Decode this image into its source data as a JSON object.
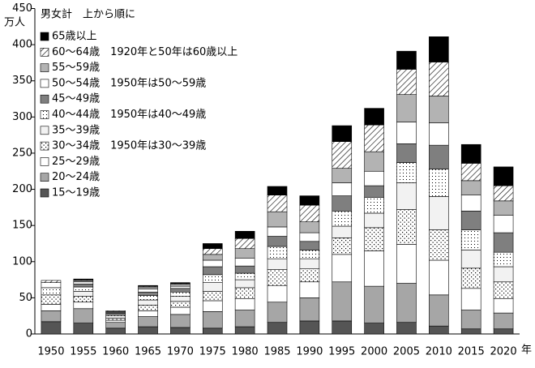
{
  "chart_data": {
    "type": "stacked-bar",
    "title": "男女計　上から順に",
    "y_unit": "万人",
    "x_unit": "年",
    "categories": [
      "1950",
      "1955",
      "1960",
      "1965",
      "1970",
      "1975",
      "1980",
      "1985",
      "1990",
      "1995",
      "2000",
      "2005",
      "2010",
      "2015",
      "2020"
    ],
    "ylim": [
      0,
      450
    ],
    "yticks": [
      0,
      50,
      100,
      150,
      200,
      250,
      300,
      350,
      400,
      450
    ],
    "series": [
      {
        "name": "15～19歳",
        "color": "#555555",
        "pattern": "solid",
        "values": [
          17,
          15,
          8,
          10,
          9,
          8,
          10,
          16,
          18,
          18,
          15,
          16,
          11,
          7,
          7
        ]
      },
      {
        "name": "20～24歳",
        "color": "#a6a6a6",
        "pattern": "solid",
        "values": [
          15,
          20,
          8,
          14,
          18,
          23,
          23,
          28,
          32,
          54,
          51,
          54,
          43,
          26,
          22
        ]
      },
      {
        "name": "25～29歳",
        "color": "#ffffff",
        "pattern": "solid",
        "values": [
          9,
          9,
          3,
          8,
          10,
          15,
          16,
          23,
          22,
          38,
          49,
          54,
          48,
          30,
          20
        ]
      },
      {
        "name": "30～34歳　1950年は30～39歳",
        "color": "#ffffff",
        "pattern": "cross",
        "values": [
          13,
          8,
          3,
          8,
          8,
          13,
          15,
          22,
          18,
          23,
          32,
          48,
          42,
          28,
          23
        ]
      },
      {
        "name": "35～39歳",
        "color": "#f2f2f2",
        "pattern": "solid",
        "values": [
          null,
          7,
          3,
          7,
          7,
          12,
          11,
          15,
          14,
          16,
          20,
          37,
          46,
          25,
          21
        ]
      },
      {
        "name": "40～44歳　1950年は40～49歳",
        "color": "#ffffff",
        "pattern": "dots",
        "values": [
          10,
          6,
          2,
          6,
          6,
          11,
          9,
          17,
          12,
          21,
          22,
          28,
          38,
          28,
          20
        ]
      },
      {
        "name": "45～49歳",
        "color": "#7f7f7f",
        "pattern": "solid",
        "values": [
          null,
          4,
          2,
          5,
          5,
          11,
          10,
          14,
          12,
          21,
          16,
          26,
          33,
          26,
          27
        ]
      },
      {
        "name": "50～54歳　1950年は50～59歳",
        "color": "#ffffff",
        "pattern": "solid",
        "values": [
          7,
          3,
          1,
          4,
          3,
          9,
          11,
          13,
          12,
          18,
          20,
          30,
          31,
          22,
          24
        ]
      },
      {
        "name": "55～59歳",
        "color": "#b3b3b3",
        "pattern": "solid",
        "values": [
          null,
          2,
          1,
          3,
          3,
          8,
          13,
          21,
          15,
          20,
          27,
          38,
          37,
          20,
          20
        ]
      },
      {
        "name": "60～64歳　1920年と50年は60歳以上",
        "color": "#ffffff",
        "pattern": "hatch",
        "values": [
          3,
          1,
          1,
          1,
          1,
          8,
          14,
          23,
          23,
          37,
          37,
          35,
          47,
          24,
          21
        ]
      },
      {
        "name": "65歳以上",
        "color": "#000000",
        "pattern": "solid",
        "values": [
          null,
          1,
          0,
          1,
          1,
          7,
          10,
          12,
          13,
          22,
          23,
          25,
          35,
          26,
          26
        ]
      }
    ]
  }
}
